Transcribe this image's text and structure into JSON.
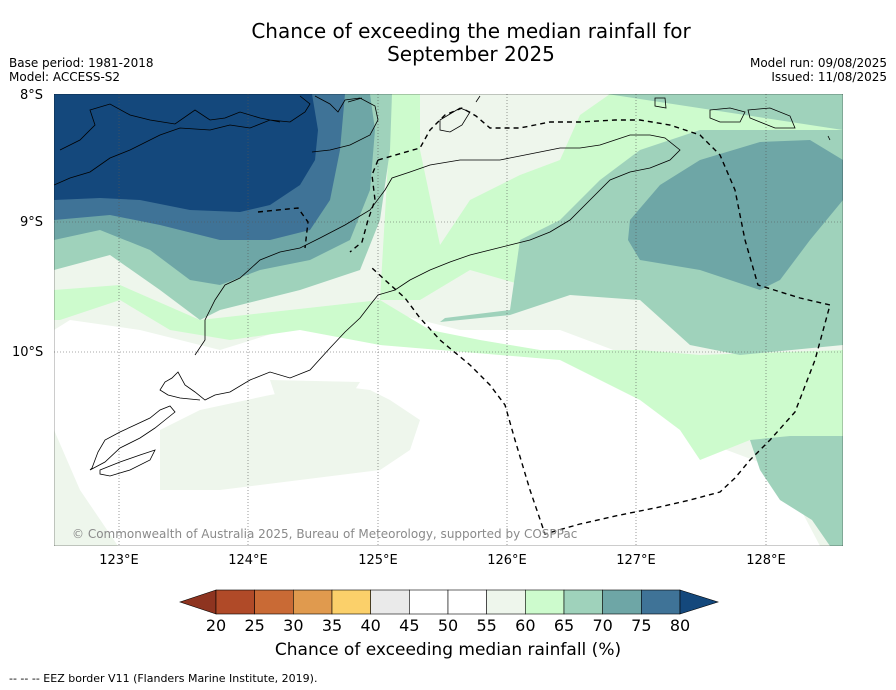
{
  "title_line1": "Chance of exceeding the median rainfall for",
  "title_line2": "September 2025",
  "meta_left": {
    "base_period": "Base period: 1981-2018",
    "model": "Model: ACCESS-S2"
  },
  "meta_right": {
    "model_run": "Model run: 09/08/2025",
    "issued": "Issued: 11/08/2025"
  },
  "lat_labels": [
    "8°S",
    "9°S",
    "10°S"
  ],
  "lon_labels": [
    "123°E",
    "124°E",
    "125°E",
    "126°E",
    "127°E",
    "128°E"
  ],
  "copyright": "© Commonwealth of Australia 2025, Bureau of Meteorology, supported by COSPPac",
  "colorbar": {
    "title": "Chance of exceeding median rainfall (%)",
    "ticks": [
      "20",
      "25",
      "30",
      "35",
      "40",
      "45",
      "50",
      "55",
      "60",
      "65",
      "70",
      "75",
      "80"
    ],
    "colors": [
      "#b04a28",
      "#c96a35",
      "#e09a4e",
      "#fbd06a",
      "#eaeaea",
      "#ffffff",
      "#ffffff",
      "#eef6ec",
      "#cdfbcd",
      "#9fd2bb",
      "#6ea6a6",
      "#3f7397"
    ],
    "under_color": "#8e3420",
    "over_color": "#14487c"
  },
  "footer": "-- -- -- EEZ border V11 (Flanders Marine Institute, 2019)."
}
